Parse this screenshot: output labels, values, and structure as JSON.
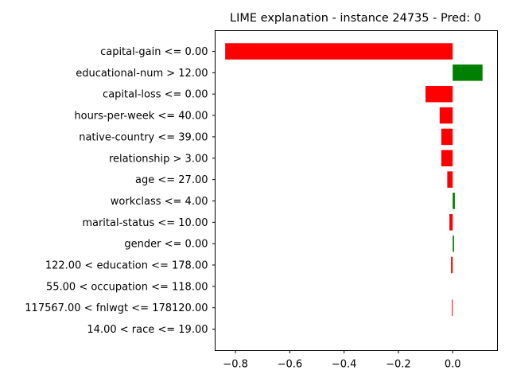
{
  "chart_data": {
    "type": "bar",
    "orientation": "horizontal",
    "title": "LIME explanation - instance 24735 - Pred: 0",
    "xlabel": "",
    "ylabel": "",
    "xlim": [
      -0.875,
      0.165
    ],
    "xticks": [
      -0.8,
      -0.6,
      -0.4,
      -0.2,
      0.0
    ],
    "xtick_labels": [
      "−0.8",
      "−0.6",
      "−0.4",
      "−0.2",
      "0.0"
    ],
    "grid": false,
    "positive_color": "#008000",
    "negative_color": "#ff0000",
    "categories": [
      "capital-gain <= 0.00",
      "educational-num > 12.00",
      "capital-loss <= 0.00",
      "hours-per-week <= 40.00",
      "native-country <= 39.00",
      "relationship > 3.00",
      "age <= 27.00",
      "workclass <= 4.00",
      "marital-status <= 10.00",
      "gender <= 0.00",
      "122.00 < education <= 178.00",
      "55.00 < occupation <= 118.00",
      "117567.00 < fnlwgt <= 178120.00",
      "14.00 < race <= 19.00"
    ],
    "values": [
      -0.838,
      0.11,
      -0.1,
      -0.048,
      -0.042,
      -0.042,
      -0.02,
      0.008,
      -0.012,
      0.005,
      -0.006,
      0.0,
      -0.003,
      0.0
    ]
  }
}
